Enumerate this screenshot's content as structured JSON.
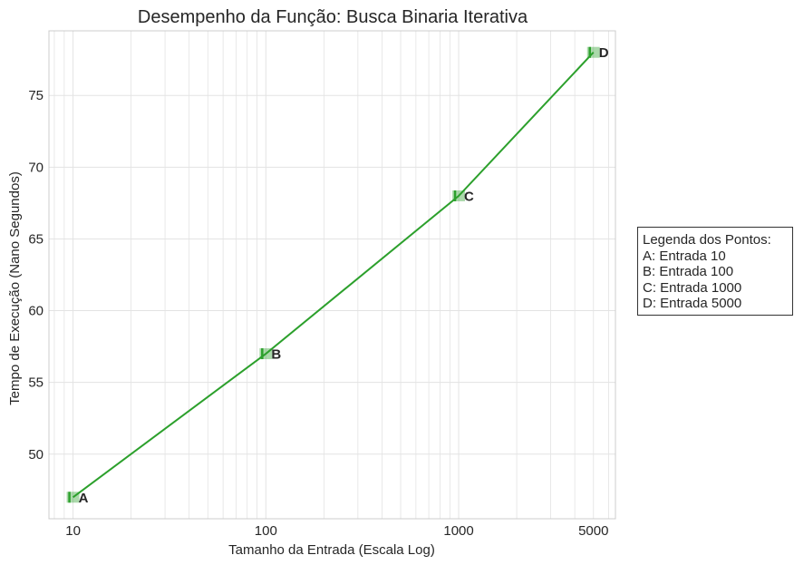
{
  "chart_data": {
    "type": "line",
    "title": "Desempenho da Função: Busca Binaria Iterativa",
    "xlabel": "Tamanho da Entrada (Escala Log)",
    "ylabel": "Tempo de Execução (Nano Segundos)",
    "xscale": "log",
    "xlim": [
      7.5,
      6500
    ],
    "ylim": [
      45.5,
      79.5
    ],
    "xticks": [
      10,
      100,
      1000,
      5000
    ],
    "xtick_labels": [
      "10",
      "100",
      "1000",
      "5000"
    ],
    "yticks": [
      50,
      55,
      60,
      65,
      70,
      75
    ],
    "ytick_labels": [
      "50",
      "55",
      "60",
      "65",
      "70",
      "75"
    ],
    "grid": true,
    "series": [
      {
        "x": [
          10,
          100,
          1000,
          5000
        ],
        "y": [
          47,
          57,
          68,
          78
        ],
        "color": "#2ca02c",
        "point_labels": [
          "A",
          "B",
          "C",
          "D"
        ]
      }
    ],
    "legend": {
      "placement": "right",
      "title": "Legenda dos Pontos:",
      "entries": [
        "A: Entrada 10",
        "B: Entrada 100",
        "C: Entrada 1000",
        "D: Entrada 5000"
      ]
    }
  }
}
